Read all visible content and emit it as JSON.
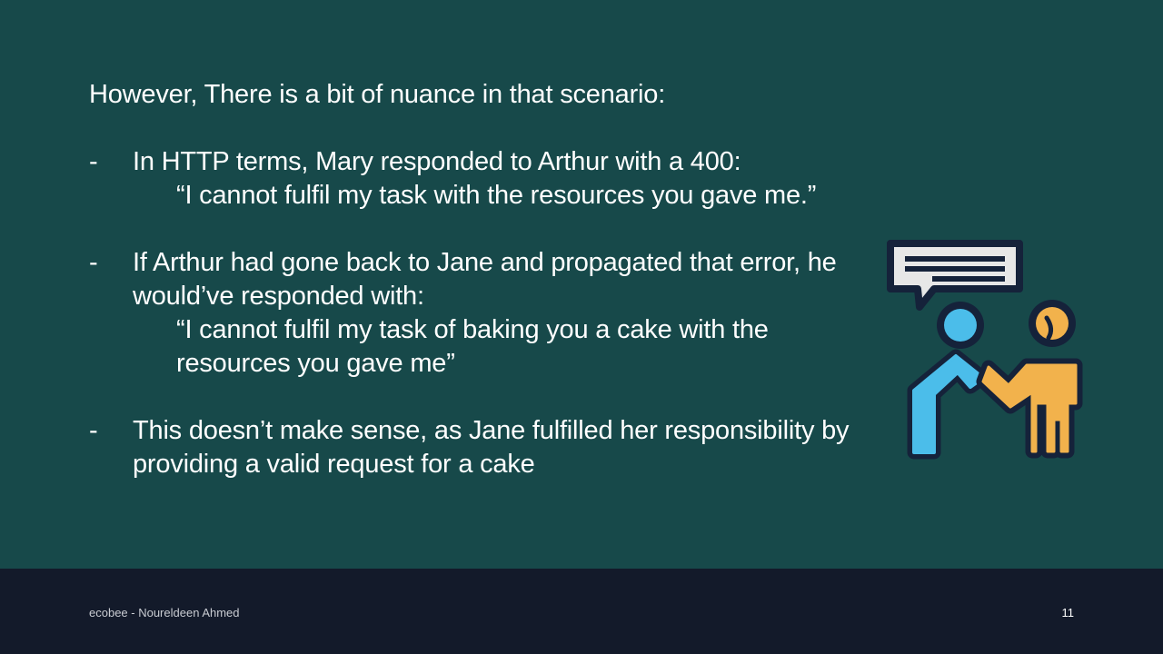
{
  "slide": {
    "intro": "However, There is a bit of nuance in that scenario:",
    "bullets": [
      {
        "dash": "-",
        "text": "In HTTP terms, Mary responded to Arthur with a 400:",
        "quote": "“I cannot fulfil my task with the resources you gave me.”"
      },
      {
        "dash": "-",
        "text": "If Arthur had gone back to Jane and propagated that error, he would’ve responded with:",
        "quote": "“I cannot fulfil my task of baking you a cake with the resources you gave me”"
      },
      {
        "dash": "-",
        "text": "This doesn’t make sense, as Jane fulfilled her responsibility by providing a valid request for a cake"
      }
    ],
    "illustration": {
      "icon": "two-people-conversation-icon",
      "colors": {
        "outline": "#15223a",
        "left_person": "#4bbdea",
        "right_person": "#f2b24c",
        "speech_bubble": "#e7e7e7"
      }
    }
  },
  "footer": {
    "text": "ecobee - Noureldeen Ahmed",
    "page_number": "11",
    "background": "#131a2a"
  },
  "colors": {
    "slide_background": "#17494a",
    "text": "#ffffff"
  }
}
